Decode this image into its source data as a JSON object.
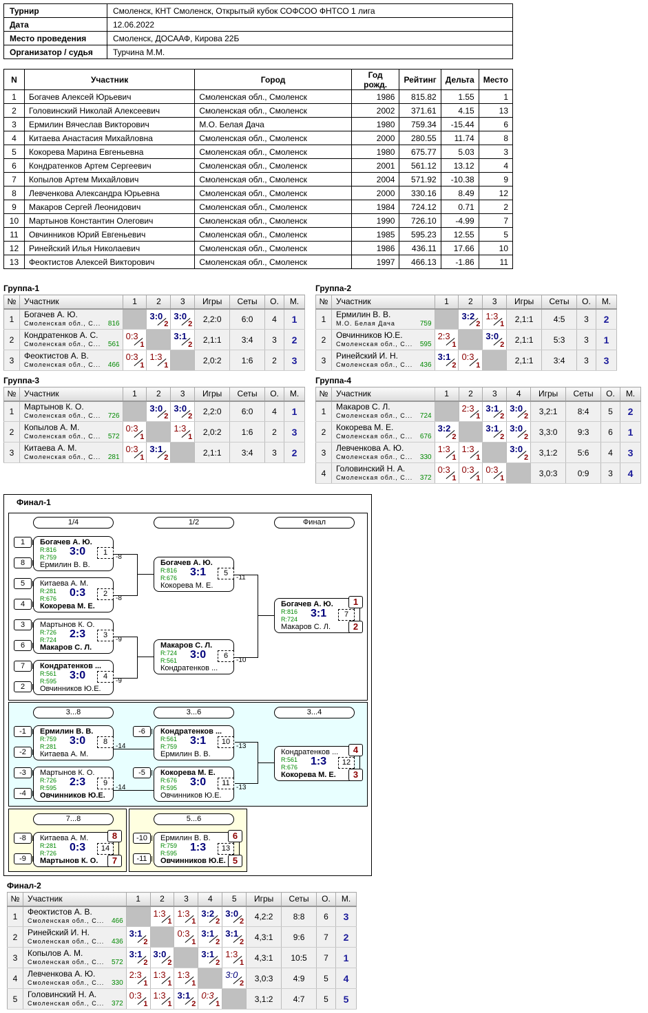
{
  "info": [
    {
      "k": "Турнир",
      "v": "Смоленск, КНТ Смоленск, Открытый кубок СОФСОО ФНТСО 1 лига"
    },
    {
      "k": "Дата",
      "v": "12.06.2022"
    },
    {
      "k": "Место проведения",
      "v": "Смоленск, ДОСААФ, Кирова 22Б"
    },
    {
      "k": "Организатор / судья",
      "v": "Турчина М.М."
    }
  ],
  "participants": {
    "headers": [
      "N",
      "Участник",
      "Город",
      "Год рожд.",
      "Рейтинг",
      "Дельта",
      "Место"
    ],
    "rows": [
      [
        "1",
        "Богачев Алексей Юрьевич",
        "Смоленская обл., Смоленск",
        "1986",
        "815.82",
        "1.55",
        "1"
      ],
      [
        "2",
        "Головинский Николай Алексеевич",
        "Смоленская обл., Смоленск",
        "2002",
        "371.61",
        "4.15",
        "13"
      ],
      [
        "3",
        "Ермилин Вячеслав Викторович",
        "М.О. Белая Дача",
        "1980",
        "759.34",
        "-15.44",
        "6"
      ],
      [
        "4",
        "Китаева Анастасия Михайловна",
        "Смоленская обл., Смоленск",
        "2000",
        "280.55",
        "11.74",
        "8"
      ],
      [
        "5",
        "Кокорева Марина Евгеньевна",
        "Смоленская обл., Смоленск",
        "1980",
        "675.77",
        "5.03",
        "3"
      ],
      [
        "6",
        "Кондратенков Артем Сергеевич",
        "Смоленская обл., Смоленск",
        "2001",
        "561.12",
        "13.12",
        "4"
      ],
      [
        "7",
        "Копылов Артем Михайлович",
        "Смоленская обл., Смоленск",
        "2004",
        "571.92",
        "-10.38",
        "9"
      ],
      [
        "8",
        "Левченкова Александра Юрьевна",
        "Смоленская обл., Смоленск",
        "2000",
        "330.16",
        "8.49",
        "12"
      ],
      [
        "9",
        "Макаров Сергей Леонидович",
        "Смоленская обл., Смоленск",
        "1984",
        "724.12",
        "0.71",
        "2"
      ],
      [
        "10",
        "Мартынов Константин Олегович",
        "Смоленская обл., Смоленск",
        "1990",
        "726.10",
        "-4.99",
        "7"
      ],
      [
        "11",
        "Овчинников Юрий Евгеньевич",
        "Смоленская обл., Смоленск",
        "1985",
        "595.23",
        "12.55",
        "5"
      ],
      [
        "12",
        "Ринейский Илья Николаевич",
        "Смоленская обл., Смоленск",
        "1986",
        "436.11",
        "17.66",
        "10"
      ],
      [
        "13",
        "Феоктистов Алексей Викторович",
        "Смоленская обл., Смоленск",
        "1997",
        "466.13",
        "-1.86",
        "11"
      ]
    ]
  },
  "group_headers": {
    "n": "№",
    "name": "Участник",
    "games": "Игры",
    "sets": "Сеты",
    "points": "О.",
    "place": "М."
  },
  "groups": [
    {
      "title": "Группа-1",
      "rows": [
        {
          "n": "1",
          "name": "Богачев А. Ю.",
          "region": "Смоленская обл., С...",
          "rating": "816",
          "res": [
            null,
            {
              "s": "3:0",
              "p": "2",
              "w": true
            },
            {
              "s": "3:0",
              "p": "2",
              "w": true
            }
          ],
          "games": "2,2:0",
          "sets": "6:0",
          "points": "4",
          "place": "1"
        },
        {
          "n": "2",
          "name": "Кондратенков А. С.",
          "region": "Смоленская обл., С...",
          "rating": "561",
          "res": [
            {
              "s": "0:3",
              "p": "1"
            },
            null,
            {
              "s": "3:1",
              "p": "2",
              "w": true
            }
          ],
          "games": "2,1:1",
          "sets": "3:4",
          "points": "3",
          "place": "2"
        },
        {
          "n": "3",
          "name": "Феоктистов А. В.",
          "region": "Смоленская обл., С...",
          "rating": "466",
          "res": [
            {
              "s": "0:3",
              "p": "1"
            },
            {
              "s": "1:3",
              "p": "1"
            },
            null
          ],
          "games": "2,0:2",
          "sets": "1:6",
          "points": "2",
          "place": "3"
        }
      ]
    },
    {
      "title": "Группа-2",
      "rows": [
        {
          "n": "1",
          "name": "Ермилин В. В.",
          "region": "М.О. Белая Дача",
          "rating": "759",
          "res": [
            null,
            {
              "s": "3:2",
              "p": "2",
              "w": true
            },
            {
              "s": "1:3",
              "p": "1"
            }
          ],
          "games": "2,1:1",
          "sets": "4:5",
          "points": "3",
          "place": "2"
        },
        {
          "n": "2",
          "name": "Овчинников Ю.Е.",
          "region": "Смоленская обл., С...",
          "rating": "595",
          "res": [
            {
              "s": "2:3",
              "p": "1"
            },
            null,
            {
              "s": "3:0",
              "p": "2",
              "w": true
            }
          ],
          "games": "2,1:1",
          "sets": "5:3",
          "points": "3",
          "place": "1"
        },
        {
          "n": "3",
          "name": "Ринейский И. Н.",
          "region": "Смоленская обл., С...",
          "rating": "436",
          "res": [
            {
              "s": "3:1",
              "p": "2",
              "w": true
            },
            {
              "s": "0:3",
              "p": "1"
            },
            null
          ],
          "games": "2,1:1",
          "sets": "3:4",
          "points": "3",
          "place": "3"
        }
      ]
    },
    {
      "title": "Группа-3",
      "rows": [
        {
          "n": "1",
          "name": "Мартынов К. О.",
          "region": "Смоленская обл., С...",
          "rating": "726",
          "res": [
            null,
            {
              "s": "3:0",
              "p": "2",
              "w": true
            },
            {
              "s": "3:0",
              "p": "2",
              "w": true
            }
          ],
          "games": "2,2:0",
          "sets": "6:0",
          "points": "4",
          "place": "1"
        },
        {
          "n": "2",
          "name": "Копылов А. М.",
          "region": "Смоленская обл., С...",
          "rating": "572",
          "res": [
            {
              "s": "0:3",
              "p": "1"
            },
            null,
            {
              "s": "1:3",
              "p": "1"
            }
          ],
          "games": "2,0:2",
          "sets": "1:6",
          "points": "2",
          "place": "3"
        },
        {
          "n": "3",
          "name": "Китаева А. М.",
          "region": "Смоленская обл., С...",
          "rating": "281",
          "res": [
            {
              "s": "0:3",
              "p": "1"
            },
            {
              "s": "3:1",
              "p": "2",
              "w": true
            },
            null
          ],
          "games": "2,1:1",
          "sets": "3:4",
          "points": "3",
          "place": "2"
        }
      ]
    },
    {
      "title": "Группа-4",
      "rows": [
        {
          "n": "1",
          "name": "Макаров С. Л.",
          "region": "Смоленская обл., С...",
          "rating": "724",
          "res": [
            null,
            {
              "s": "2:3",
              "p": "1"
            },
            {
              "s": "3:1",
              "p": "2",
              "w": true
            },
            {
              "s": "3:0",
              "p": "2",
              "w": true
            }
          ],
          "games": "3,2:1",
          "sets": "8:4",
          "points": "5",
          "place": "2"
        },
        {
          "n": "2",
          "name": "Кокорева М. Е.",
          "region": "Смоленская обл., С...",
          "rating": "676",
          "res": [
            {
              "s": "3:2",
              "p": "2",
              "w": true
            },
            null,
            {
              "s": "3:1",
              "p": "2",
              "w": true
            },
            {
              "s": "3:0",
              "p": "2",
              "w": true
            }
          ],
          "games": "3,3:0",
          "sets": "9:3",
          "points": "6",
          "place": "1"
        },
        {
          "n": "3",
          "name": "Левченкова А. Ю.",
          "region": "Смоленская обл., С...",
          "rating": "330",
          "res": [
            {
              "s": "1:3",
              "p": "1"
            },
            {
              "s": "1:3",
              "p": "1"
            },
            null,
            {
              "s": "3:0",
              "p": "2",
              "w": true
            }
          ],
          "games": "3,1:2",
          "sets": "5:6",
          "points": "4",
          "place": "3"
        },
        {
          "n": "4",
          "name": "Головинский Н. А.",
          "region": "Смоленская обл., С...",
          "rating": "372",
          "res": [
            {
              "s": "0:3",
              "p": "1"
            },
            {
              "s": "0:3",
              "p": "1"
            },
            {
              "s": "0:3",
              "p": "1"
            },
            null
          ],
          "games": "3,0:3",
          "sets": "0:9",
          "points": "3",
          "place": "4"
        }
      ]
    },
    {
      "title": "Финал-2",
      "rows": [
        {
          "n": "1",
          "name": "Феоктистов А. В.",
          "region": "Смоленская обл., С...",
          "rating": "466",
          "res": [
            null,
            {
              "s": "1:3",
              "p": "1"
            },
            {
              "s": "1:3",
              "p": "1"
            },
            {
              "s": "3:2",
              "p": "2",
              "w": true
            },
            {
              "s": "3:0",
              "p": "2",
              "w": true
            }
          ],
          "games": "4,2:2",
          "sets": "8:8",
          "points": "6",
          "place": "3"
        },
        {
          "n": "2",
          "name": "Ринейский И. Н.",
          "region": "Смоленская обл., С...",
          "rating": "436",
          "res": [
            {
              "s": "3:1",
              "p": "2",
              "w": true
            },
            null,
            {
              "s": "0:3",
              "p": "1"
            },
            {
              "s": "3:1",
              "p": "2",
              "w": true
            },
            {
              "s": "3:1",
              "p": "2",
              "w": true
            }
          ],
          "games": "4,3:1",
          "sets": "9:6",
          "points": "7",
          "place": "2"
        },
        {
          "n": "3",
          "name": "Копылов А. М.",
          "region": "Смоленская обл., С...",
          "rating": "572",
          "res": [
            {
              "s": "3:1",
              "p": "2",
              "w": true
            },
            {
              "s": "3:0",
              "p": "2",
              "w": true
            },
            null,
            {
              "s": "3:1",
              "p": "2",
              "w": true
            },
            {
              "s": "1:3",
              "p": "1"
            }
          ],
          "games": "4,3:1",
          "sets": "10:5",
          "points": "7",
          "place": "1"
        },
        {
          "n": "4",
          "name": "Левченкова А. Ю.",
          "region": "Смоленская обл., С...",
          "rating": "330",
          "res": [
            {
              "s": "2:3",
              "p": "1"
            },
            {
              "s": "1:3",
              "p": "1"
            },
            {
              "s": "1:3",
              "p": "1"
            },
            null,
            {
              "s": "3:0",
              "p": "2",
              "w": true,
              "it": true
            }
          ],
          "games": "3,0:3",
          "sets": "4:9",
          "points": "5",
          "place": "4"
        },
        {
          "n": "5",
          "name": "Головинский Н. А.",
          "region": "Смоленская обл., С...",
          "rating": "372",
          "res": [
            {
              "s": "0:3",
              "p": "1"
            },
            {
              "s": "1:3",
              "p": "1"
            },
            {
              "s": "3:1",
              "p": "2",
              "w": true
            },
            {
              "s": "0:3",
              "p": "1",
              "it": true
            },
            null
          ],
          "games": "3,1:2",
          "sets": "4:7",
          "points": "5",
          "place": "5"
        }
      ]
    }
  ],
  "final1": {
    "title": "Финал-1",
    "pills": [
      "1/4",
      "1/2",
      "Финал",
      "3...8",
      "3...6",
      "3...4",
      "7...8",
      "5...6"
    ],
    "seeds": [
      "1",
      "8",
      "5",
      "4",
      "3",
      "6",
      "7",
      "2",
      "-1",
      "-2",
      "-3",
      "-4",
      "-6",
      "-5",
      "-8",
      "-9",
      "-10",
      "-11"
    ],
    "matches": [
      {
        "top": "Богачев А. Ю.",
        "bottom": "Ермилин В. В.",
        "r1": "R:816",
        "r2": "R:759",
        "score": "3:0",
        "num": "1",
        "win": "top",
        "next": "-8"
      },
      {
        "top": "Китаева А. М.",
        "bottom": "Кокорева М. Е.",
        "r1": "R:281",
        "r2": "R:676",
        "score": "0:3",
        "num": "2",
        "win": "bottom",
        "next": "-8"
      },
      {
        "top": "Мартынов К. О.",
        "bottom": "Макаров С. Л.",
        "r1": "R:726",
        "r2": "R:724",
        "score": "2:3",
        "num": "3",
        "win": "bottom",
        "next": "-9"
      },
      {
        "top": "Кондратенков ...",
        "bottom": "Овчинников Ю.Е.",
        "r1": "R:561",
        "r2": "R:595",
        "score": "3:0",
        "num": "4",
        "win": "top",
        "next": "-9"
      },
      {
        "top": "Богачев А. Ю.",
        "bottom": "Кокорева М. Е.",
        "r1": "R:816",
        "r2": "R:676",
        "score": "3:1",
        "num": "5",
        "win": "top",
        "next": "-11"
      },
      {
        "top": "Макаров С. Л.",
        "bottom": "Кондратенков ...",
        "r1": "R:724",
        "r2": "R:561",
        "score": "3:0",
        "num": "6",
        "win": "top",
        "next": "-10"
      },
      {
        "top": "Богачев А. Ю.",
        "bottom": "Макаров С. Л.",
        "r1": "R:816",
        "r2": "R:724",
        "score": "3:1",
        "num": "7",
        "win": "top",
        "places": [
          "1",
          "2"
        ]
      },
      {
        "top": "Ермилин В. В.",
        "bottom": "Китаева А. М.",
        "r1": "R:759",
        "r2": "R:281",
        "score": "3:0",
        "num": "8",
        "win": "top",
        "next": "-14"
      },
      {
        "top": "Мартынов К. О.",
        "bottom": "Овчинников Ю.Е.",
        "r1": "R:726",
        "r2": "R:595",
        "score": "2:3",
        "num": "9",
        "win": "bottom",
        "next": "-14"
      },
      {
        "top": "Кондратенков ...",
        "bottom": "Ермилин В. В.",
        "r1": "R:561",
        "r2": "R:759",
        "score": "3:1",
        "num": "10",
        "win": "top",
        "next": "-13"
      },
      {
        "top": "Кокорева М. Е.",
        "bottom": "Овчинников Ю.Е.",
        "r1": "R:676",
        "r2": "R:595",
        "score": "3:0",
        "num": "11",
        "win": "top",
        "next": "-13"
      },
      {
        "top": "Кондратенков ...",
        "bottom": "Кокорева М. Е.",
        "r1": "R:561",
        "r2": "R:676",
        "score": "1:3",
        "num": "12",
        "win": "bottom",
        "places": [
          "4",
          "3"
        ]
      },
      {
        "top": "Китаева А. М.",
        "bottom": "Мартынов К. О.",
        "r1": "R:281",
        "r2": "R:726",
        "score": "0:3",
        "num": "14",
        "win": "bottom",
        "places": [
          "8",
          "7"
        ]
      },
      {
        "top": "Ермилин В. В.",
        "bottom": "Овчинников Ю.Е.",
        "r1": "R:759",
        "r2": "R:595",
        "score": "1:3",
        "num": "13",
        "win": "bottom",
        "places": [
          "6",
          "5"
        ]
      }
    ]
  },
  "colors": {
    "win": "#00007a",
    "loss": "#8b0000",
    "rating": "#008000",
    "consolation_bg": "#e8ffff",
    "lower_bg": "#ffffe0",
    "self_cell": "#c0c0c0"
  }
}
